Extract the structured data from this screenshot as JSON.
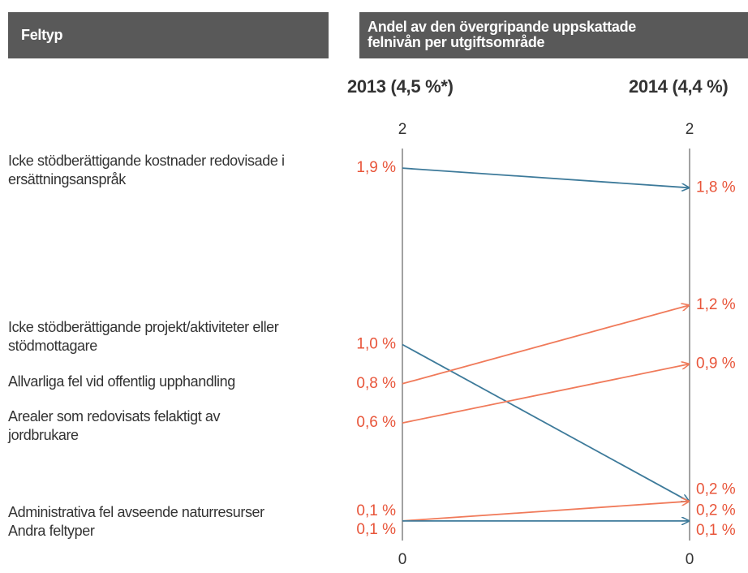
{
  "chart_data": {
    "type": "slope",
    "header_left": "Feltyp",
    "header_right": "Andel av den övergripande uppskattade felnivån per utgiftsområde",
    "categories": [
      "Icke stödberättigande kostnader redovisade i ersättningsanspråk",
      "Icke stödberättigande projekt/aktiviteter eller stödmottagare",
      "Allvarliga fel vid offentlig upphandling",
      "Arealer som redovisats felaktigt av jordbrukare",
      "Administrativa fel avseende naturresurser",
      "Andra feltyper"
    ],
    "colors": [
      "#3d7a9a",
      "#3d7a9a",
      "#f07a5a",
      "#f07a5a",
      "#f07a5a",
      "#3d7a9a"
    ],
    "series": [
      {
        "name": "2013 (4,5 %*)",
        "values": [
          1.9,
          1.0,
          0.8,
          0.6,
          0.1,
          0.1
        ],
        "value_labels": [
          "1,9 %",
          "1,0 %",
          "0,8 %",
          "0,6 %",
          "0,1 %",
          "0,1 %"
        ]
      },
      {
        "name": "2014 (4,4 %)",
        "values": [
          1.8,
          0.2,
          1.2,
          0.9,
          0.2,
          0.1
        ],
        "value_labels": [
          "1,8 %",
          "0,2 %",
          "1,2 %",
          "0,9 %",
          "0,2 %",
          "0,1 %"
        ]
      }
    ],
    "ylim": [
      0,
      2
    ],
    "yticks": [
      0,
      2
    ]
  }
}
